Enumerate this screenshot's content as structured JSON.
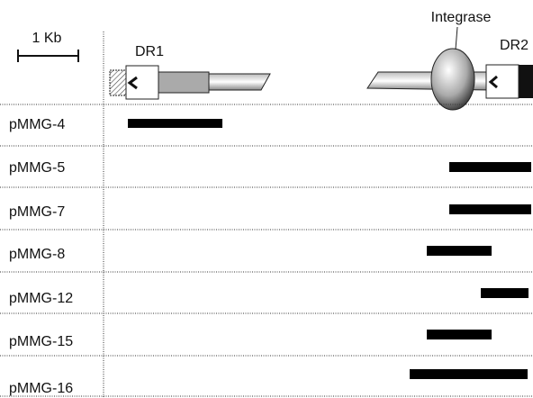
{
  "scale_label": "1 Kb",
  "elements": {
    "dr1": "DR1",
    "integrase": "Integrase",
    "dr2": "DR2"
  },
  "rows": [
    "pMMG-4",
    "pMMG-5",
    "pMMG-7",
    "pMMG-8",
    "pMMG-12",
    "pMMG-15",
    "pMMG-16"
  ]
}
